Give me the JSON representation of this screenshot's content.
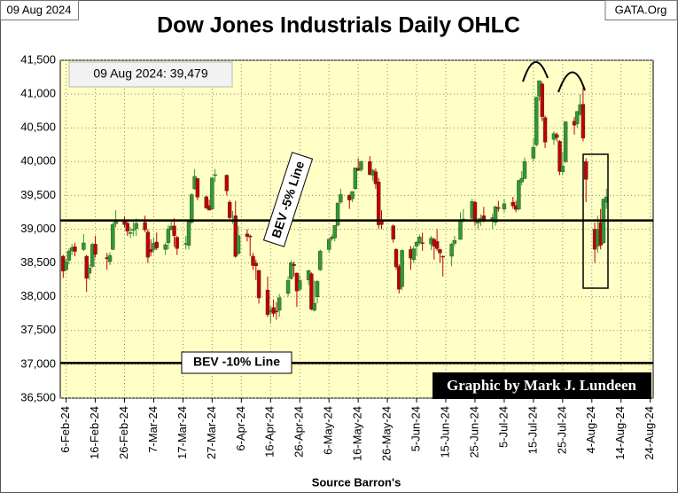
{
  "chart_data": {
    "type": "candlestick",
    "title": "Dow Jones Industrials Daily OHLC",
    "date_label": "09 Aug 2024",
    "source_site": "GATA.Org",
    "info_box": "09 Aug 2024:  39,479",
    "credit": "Graphic by Mark J. Lundeen",
    "x_label": "Source Barron's",
    "up_color": "#2f9a2f",
    "down_color": "#c00000",
    "plot_background": "#ffffc6",
    "grid": true,
    "ylim": [
      36500,
      41500
    ],
    "yticks": [
      {
        "value": 36500,
        "label": "36,500"
      },
      {
        "value": 37000,
        "label": "37,000"
      },
      {
        "value": 37500,
        "label": "37,500"
      },
      {
        "value": 38000,
        "label": "38,000"
      },
      {
        "value": 38500,
        "label": "38,500"
      },
      {
        "value": 39000,
        "label": "39,000"
      },
      {
        "value": 39500,
        "label": "39,500"
      },
      {
        "value": 40000,
        "label": "40,000"
      },
      {
        "value": 40500,
        "label": "40,500"
      },
      {
        "value": 41000,
        "label": "41,000"
      },
      {
        "value": 41500,
        "label": "41,500"
      }
    ],
    "xlim": [
      "2024-02-04",
      "2024-08-25"
    ],
    "xticks": [
      {
        "value": "2024-02-06",
        "label": "6-Feb-24"
      },
      {
        "value": "2024-02-16",
        "label": "16-Feb-24"
      },
      {
        "value": "2024-02-26",
        "label": "26-Feb-24"
      },
      {
        "value": "2024-03-07",
        "label": "7-Mar-24"
      },
      {
        "value": "2024-03-17",
        "label": "17-Mar-24"
      },
      {
        "value": "2024-03-27",
        "label": "27-Mar-24"
      },
      {
        "value": "2024-04-06",
        "label": "6-Apr-24"
      },
      {
        "value": "2024-04-16",
        "label": "16-Apr-24"
      },
      {
        "value": "2024-04-26",
        "label": "26-Apr-24"
      },
      {
        "value": "2024-05-06",
        "label": "6-May-24"
      },
      {
        "value": "2024-05-16",
        "label": "16-May-24"
      },
      {
        "value": "2024-05-26",
        "label": "26-May-24"
      },
      {
        "value": "2024-06-05",
        "label": "5-Jun-24"
      },
      {
        "value": "2024-06-15",
        "label": "15-Jun-24"
      },
      {
        "value": "2024-06-25",
        "label": "25-Jun-24"
      },
      {
        "value": "2024-07-05",
        "label": "5-Jul-24"
      },
      {
        "value": "2024-07-15",
        "label": "15-Jul-24"
      },
      {
        "value": "2024-07-25",
        "label": "25-Jul-24"
      },
      {
        "value": "2024-08-04",
        "label": "4-Aug-24"
      },
      {
        "value": "2024-08-14",
        "label": "14-Aug-24"
      },
      {
        "value": "2024-08-24",
        "label": "24-Aug-24"
      }
    ],
    "reference_lines": [
      {
        "value": 39130,
        "label": "BEV -5% Line"
      },
      {
        "value": 37020,
        "label": "BEV -10% Line"
      }
    ],
    "x": [
      "2024-02-05",
      "2024-02-06",
      "2024-02-07",
      "2024-02-08",
      "2024-02-09",
      "2024-02-12",
      "2024-02-13",
      "2024-02-14",
      "2024-02-15",
      "2024-02-16",
      "2024-02-20",
      "2024-02-21",
      "2024-02-22",
      "2024-02-23",
      "2024-02-26",
      "2024-02-27",
      "2024-02-28",
      "2024-02-29",
      "2024-03-01",
      "2024-03-04",
      "2024-03-05",
      "2024-03-06",
      "2024-03-07",
      "2024-03-08",
      "2024-03-11",
      "2024-03-12",
      "2024-03-13",
      "2024-03-14",
      "2024-03-15",
      "2024-03-18",
      "2024-03-19",
      "2024-03-20",
      "2024-03-21",
      "2024-03-22",
      "2024-03-25",
      "2024-03-26",
      "2024-03-27",
      "2024-03-28",
      "2024-04-01",
      "2024-04-02",
      "2024-04-03",
      "2024-04-04",
      "2024-04-05",
      "2024-04-08",
      "2024-04-09",
      "2024-04-10",
      "2024-04-11",
      "2024-04-12",
      "2024-04-15",
      "2024-04-16",
      "2024-04-17",
      "2024-04-18",
      "2024-04-19",
      "2024-04-22",
      "2024-04-23",
      "2024-04-24",
      "2024-04-25",
      "2024-04-26",
      "2024-04-29",
      "2024-04-30",
      "2024-05-01",
      "2024-05-02",
      "2024-05-03",
      "2024-05-06",
      "2024-05-07",
      "2024-05-08",
      "2024-05-09",
      "2024-05-10",
      "2024-05-13",
      "2024-05-14",
      "2024-05-15",
      "2024-05-16",
      "2024-05-17",
      "2024-05-20",
      "2024-05-21",
      "2024-05-22",
      "2024-05-23",
      "2024-05-24",
      "2024-05-28",
      "2024-05-29",
      "2024-05-30",
      "2024-05-31",
      "2024-06-03",
      "2024-06-04",
      "2024-06-05",
      "2024-06-06",
      "2024-06-07",
      "2024-06-10",
      "2024-06-11",
      "2024-06-12",
      "2024-06-13",
      "2024-06-14",
      "2024-06-17",
      "2024-06-18",
      "2024-06-20",
      "2024-06-21",
      "2024-06-24",
      "2024-06-25",
      "2024-06-26",
      "2024-06-27",
      "2024-06-28",
      "2024-07-01",
      "2024-07-02",
      "2024-07-03",
      "2024-07-05",
      "2024-07-08",
      "2024-07-09",
      "2024-07-10",
      "2024-07-11",
      "2024-07-12",
      "2024-07-15",
      "2024-07-16",
      "2024-07-17",
      "2024-07-18",
      "2024-07-19",
      "2024-07-22",
      "2024-07-23",
      "2024-07-24",
      "2024-07-25",
      "2024-07-26",
      "2024-07-29",
      "2024-07-30",
      "2024-07-31",
      "2024-08-01",
      "2024-08-02",
      "2024-08-05",
      "2024-08-06",
      "2024-08-07",
      "2024-08-08",
      "2024-08-09"
    ],
    "open": [
      38600,
      38400,
      38540,
      38680,
      38740,
      38700,
      38600,
      38350,
      38450,
      38780,
      38580,
      38520,
      38700,
      39080,
      39120,
      39090,
      38940,
      38990,
      39010,
      39100,
      38960,
      38700,
      38700,
      38810,
      38700,
      38800,
      39000,
      39050,
      38880,
      38780,
      38760,
      39100,
      39600,
      39750,
      39480,
      39350,
      39300,
      39800,
      39800,
      39400,
      39120,
      39200,
      38640,
      38930,
      38900,
      38600,
      38500,
      38390,
      38100,
      37780,
      37840,
      37790,
      37800,
      38050,
      38270,
      38480,
      38350,
      38110,
      38250,
      38340,
      37800,
      38000,
      38400,
      38700,
      38860,
      38870,
      39060,
      39400,
      39500,
      39450,
      39600,
      39900,
      39880,
      40000,
      39800,
      39850,
      39700,
      39120,
      39050,
      38700,
      38450,
      38150,
      38700,
      38550,
      38750,
      38800,
      38800,
      38780,
      38850,
      38820,
      38700,
      38600,
      38600,
      38790,
      38850,
      39140,
      39160,
      39400,
      39090,
      39130,
      39200,
      39150,
      39100,
      39320,
      39300,
      39400,
      39350,
      39300,
      39700,
      39750,
      40050,
      40250,
      40970,
      41150,
      40650,
      40330,
      40400,
      40300,
      39850,
      40000,
      40600,
      40560,
      40700,
      40850,
      40000,
      39000,
      38750,
      39100,
      38800,
      39400
    ],
    "high": [
      38620,
      38560,
      38720,
      38780,
      38800,
      38930,
      38620,
      38480,
      38800,
      38900,
      38650,
      38660,
      39100,
      39280,
      39190,
      39130,
      39030,
      39110,
      39160,
      39200,
      39000,
      38850,
      38880,
      38950,
      38800,
      39060,
      39110,
      39160,
      38900,
      38900,
      39120,
      39530,
      39890,
      39760,
      39500,
      39440,
      39770,
      39890,
      39810,
      39430,
      39270,
      39420,
      39050,
      39000,
      38920,
      38650,
      38550,
      38400,
      38300,
      37860,
      37960,
      37920,
      38040,
      38300,
      38540,
      38520,
      38360,
      38320,
      38400,
      38360,
      38240,
      38250,
      38700,
      38860,
      38920,
      39060,
      39390,
      39600,
      39520,
      39560,
      39910,
      40050,
      40010,
      40080,
      39890,
      39900,
      39760,
      39280,
      39070,
      38720,
      38480,
      38700,
      38750,
      38750,
      38830,
      38920,
      38950,
      38900,
      38870,
      39000,
      38710,
      38610,
      38800,
      38900,
      39250,
      39300,
      39450,
      39420,
      39160,
      39220,
      39330,
      39230,
      39350,
      39420,
      39440,
      39480,
      39420,
      39730,
      39860,
      40060,
      40350,
      40960,
      41200,
      41180,
      40680,
      40450,
      40430,
      40320,
      40150,
      40600,
      40660,
      40750,
      41000,
      41100,
      40050,
      39100,
      39200,
      39300,
      39450,
      39600
    ],
    "low": [
      38280,
      38380,
      38480,
      38620,
      38600,
      38680,
      38070,
      38250,
      38430,
      38580,
      38400,
      38470,
      38690,
      39030,
      39030,
      38900,
      38870,
      38900,
      38900,
      38960,
      38500,
      38600,
      38650,
      38690,
      38620,
      38700,
      38980,
      38740,
      38620,
      38700,
      38700,
      39080,
      39580,
      39430,
      39300,
      39280,
      39290,
      39700,
      39500,
      39150,
      39080,
      38580,
      38620,
      38820,
      38600,
      38400,
      38250,
      37900,
      37700,
      37610,
      37700,
      37660,
      37700,
      38000,
      38250,
      38300,
      37850,
      38090,
      38170,
      37800,
      37780,
      37900,
      38380,
      38650,
      38830,
      38820,
      39040,
      39380,
      39300,
      39400,
      39580,
      39860,
      39850,
      39800,
      39720,
      39600,
      39010,
      39000,
      38800,
      38400,
      38050,
      38100,
      38400,
      38500,
      38600,
      38770,
      38680,
      38690,
      38550,
      38680,
      38500,
      38300,
      38450,
      38750,
      38840,
      39100,
      39150,
      39050,
      39000,
      39050,
      39100,
      39000,
      39050,
      39260,
      39250,
      39300,
      39250,
      39280,
      39650,
      39740,
      40000,
      40220,
      40900,
      40600,
      40200,
      40250,
      40300,
      39800,
      39800,
      39980,
      40400,
      40500,
      40680,
      40300,
      39400,
      38500,
      38650,
      38700,
      38780,
      39300
    ],
    "close": [
      38380,
      38521,
      38677,
      38726,
      38671,
      38797,
      38273,
      38424,
      38773,
      38628,
      38564,
      38612,
      39069,
      39131,
      39069,
      38972,
      38949,
      38996,
      39087,
      38990,
      38585,
      38661,
      38791,
      38723,
      38770,
      39005,
      39043,
      38906,
      38715,
      38790,
      39111,
      39512,
      39781,
      39476,
      39313,
      39282,
      39760,
      39807,
      39567,
      39170,
      39127,
      38597,
      38904,
      38892,
      38884,
      38462,
      38459,
      37983,
      37735,
      37799,
      37753,
      37775,
      37986,
      38240,
      38504,
      38461,
      38086,
      38240,
      38386,
      37816,
      37903,
      38226,
      38676,
      38852,
      38884,
      39056,
      39388,
      39513,
      39432,
      39558,
      39908,
      39870,
      40004,
      39807,
      39873,
      39671,
      39065,
      39070,
      38853,
      38442,
      38112,
      38686,
      38571,
      38711,
      38807,
      38886,
      38799,
      38868,
      38747,
      38712,
      38647,
      38589,
      38778,
      38834,
      39135,
      39150,
      39411,
      39112,
      39127,
      39164,
      39119,
      39170,
      39332,
      39308,
      39376,
      39345,
      39291,
      39721,
      39753,
      40001,
      40212,
      40954,
      41198,
      40665,
      40288,
      40415,
      40358,
      39854,
      39935,
      40589,
      40540,
      40743,
      40843,
      40348,
      39737,
      38703,
      38997,
      38763,
      39446,
      39479
    ]
  }
}
